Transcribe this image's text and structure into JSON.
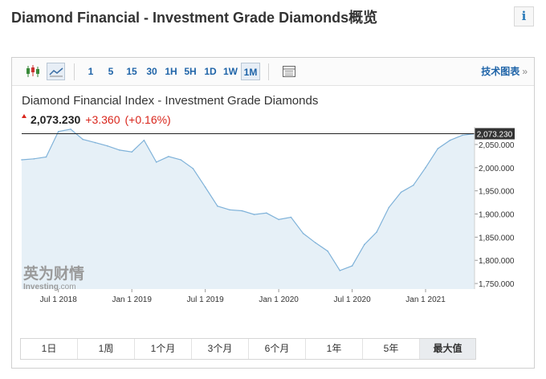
{
  "page": {
    "title": "Diamond Financial - Investment Grade Diamonds概览",
    "info_icon": "info-icon"
  },
  "toolbar": {
    "chart_types": [
      {
        "icon": "candlestick-chart-icon",
        "active": false
      },
      {
        "icon": "area-chart-icon",
        "active": true
      }
    ],
    "intervals": [
      {
        "label": "1",
        "active": false
      },
      {
        "label": "5",
        "active": false
      },
      {
        "label": "15",
        "active": false
      },
      {
        "label": "30",
        "active": false
      },
      {
        "label": "1H",
        "active": false
      },
      {
        "label": "5H",
        "active": false
      },
      {
        "label": "1D",
        "active": false
      },
      {
        "label": "1W",
        "active": false
      },
      {
        "label": "1M",
        "active": true
      }
    ],
    "table_icon": "table-icon",
    "tech_chart_link": "技术图表",
    "tech_chart_arrow": "»"
  },
  "quote": {
    "name": "Diamond Financial Index - Investment Grade Diamonds",
    "price": "2,073.230",
    "change": "+3.360",
    "change_pct": "(+0.16%)",
    "up_color": "#d9261c"
  },
  "watermark": {
    "cn": "英为财情",
    "en": "Investing",
    "en_suffix": ".com"
  },
  "chart_data": {
    "type": "area",
    "title": "Diamond Financial Index - Investment Grade Diamonds",
    "x": [
      "2018-04",
      "2018-05",
      "2018-06",
      "2018-07",
      "2018-08",
      "2018-09",
      "2018-10",
      "2018-11",
      "2018-12",
      "2019-01",
      "2019-02",
      "2019-03",
      "2019-04",
      "2019-05",
      "2019-06",
      "2019-07",
      "2019-08",
      "2019-09",
      "2019-10",
      "2019-11",
      "2019-12",
      "2020-01",
      "2020-02",
      "2020-03",
      "2020-04",
      "2020-05",
      "2020-06",
      "2020-07",
      "2020-08",
      "2020-09",
      "2020-10",
      "2020-11",
      "2020-12",
      "2021-01",
      "2021-02",
      "2021-03",
      "2021-04",
      "2021-05"
    ],
    "values": [
      2017,
      2019,
      2023,
      2078,
      2083,
      2061,
      2054,
      2047,
      2038,
      2034,
      2059,
      2012,
      2024,
      2017,
      1998,
      1958,
      1917,
      1909,
      1907,
      1899,
      1902,
      1888,
      1893,
      1858,
      1838,
      1820,
      1778,
      1788,
      1834,
      1861,
      1914,
      1947,
      1962,
      2000,
      2041,
      2059,
      2070,
      2073.23
    ],
    "x_ticks": [
      "Jul 1 2018",
      "Jan 1 2019",
      "Jul 1 2019",
      "Jan 1 2020",
      "Jul 1 2020",
      "Jan 1 2021"
    ],
    "x_tick_dates": [
      "2018-07",
      "2019-01",
      "2019-07",
      "2020-01",
      "2020-07",
      "2021-01"
    ],
    "y_ticks": [
      "2,050.000",
      "2,000.000",
      "1,950.000",
      "1,900.000",
      "1,850.000",
      "1,800.000",
      "1,750.000"
    ],
    "y_tick_values": [
      2050,
      2000,
      1950,
      1900,
      1850,
      1800,
      1750
    ],
    "ylim": [
      1738,
      2088
    ],
    "current_value": 2073.23,
    "current_label": "2,073.230",
    "line_color": "#7fb2d9",
    "fill_color": "#e6f0f7",
    "grid": false
  },
  "periods": [
    {
      "label": "1日",
      "active": false
    },
    {
      "label": "1周",
      "active": false
    },
    {
      "label": "1个月",
      "active": false
    },
    {
      "label": "3个月",
      "active": false
    },
    {
      "label": "6个月",
      "active": false
    },
    {
      "label": "1年",
      "active": false
    },
    {
      "label": "5年",
      "active": false
    },
    {
      "label": "最大值",
      "active": true
    }
  ]
}
